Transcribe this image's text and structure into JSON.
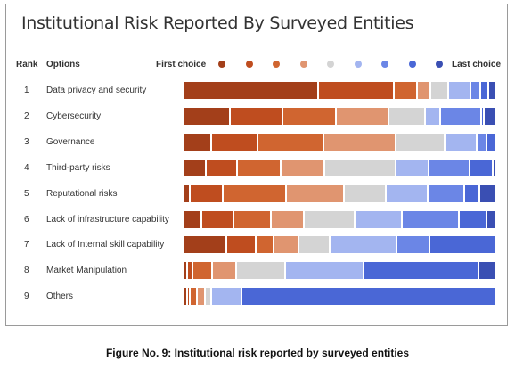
{
  "chart_data": {
    "type": "bar",
    "stacked": true,
    "normalized": true,
    "title": "Institutional Risk Reported By Surveyed Entities",
    "headers": {
      "rank": "Rank",
      "options": "Options",
      "first": "First choice",
      "last": "Last choice"
    },
    "legend_colors": [
      "#a33f1a",
      "#bf4d1f",
      "#d06530",
      "#e09570",
      "#d4d4d4",
      "#a3b5f0",
      "#6b86e6",
      "#4a67d6",
      "#3a4fb3"
    ],
    "categories": [
      "Data privacy and security",
      "Cybersecurity",
      "Governance",
      "Third-party risks",
      "Reputational risks",
      "Lack of infrastructure capability",
      "Lack of Internal skill capability",
      "Market Manipulation",
      "Others"
    ],
    "ranks": [
      "1",
      "2",
      "3",
      "4",
      "5",
      "6",
      "7",
      "8",
      "9"
    ],
    "shares": [
      [
        43.2,
        24.2,
        7.4,
        4.2,
        5.8,
        7.1,
        2.9,
        2.6,
        2.6
      ],
      [
        15.2,
        16.8,
        17.4,
        16.8,
        11.9,
        4.8,
        13.2,
        1.0,
        3.9
      ],
      [
        9.0,
        14.8,
        21.0,
        23.1,
        15.5,
        10.4,
        3.2,
        2.6,
        0.4
      ],
      [
        7.4,
        10.0,
        13.9,
        13.9,
        22.6,
        10.6,
        13.2,
        7.4,
        1.0
      ],
      [
        2.3,
        10.6,
        20.0,
        18.4,
        13.5,
        13.2,
        11.9,
        4.8,
        5.3
      ],
      [
        6.1,
        10.0,
        11.9,
        10.6,
        16.1,
        15.2,
        18.1,
        9.0,
        3.0
      ],
      [
        13.9,
        9.4,
        5.8,
        7.7,
        10.0,
        21.3,
        10.6,
        21.3,
        0.0
      ],
      [
        1.3,
        1.9,
        6.1,
        7.7,
        15.8,
        24.8,
        0.0,
        36.8,
        5.6
      ],
      [
        1.3,
        1.0,
        2.3,
        2.6,
        1.9,
        9.7,
        0.0,
        81.2,
        0.0
      ]
    ]
  },
  "caption": "Figure No. 9: Institutional risk reported by surveyed entities"
}
